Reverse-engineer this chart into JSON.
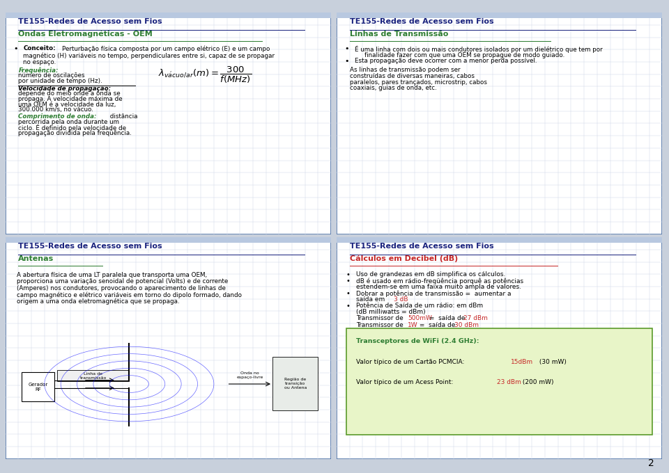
{
  "bg_color": "#c8d0dc",
  "panel_bg": "#ffffff",
  "header_color": "#1a237e",
  "subheader_green": "#2e7d32",
  "red_color": "#c62828",
  "grid_color": "#d0d8e8",
  "border_color": "#4a6fa5",
  "highlight_box_bg": "#e8f5c8",
  "highlight_box_border": "#5a9a2a",
  "panel_tl_title": "TE155-Redes de Acesso sem Fios",
  "panel_tl_subtitle": "Ondas Eletromagnéticas - OEM",
  "panel_tr_title": "TE155-Redes de Acesso sem Fios",
  "panel_tr_subtitle": "Linhas de Transmissão",
  "panel_bl_title": "TE155-Redes de Acesso sem Fios",
  "panel_bl_subtitle": "Antenas",
  "panel_br_title": "TE155-Redes de Acesso sem Fios",
  "panel_br_subtitle": "Cálculos em Decibel (dB)",
  "page_number": "2",
  "tl_concept_bold": "Conceito:",
  "tl_concept_rest": " Perturbação física composta por um campo elétrico (E) e um campo\nmagnético (H) variáveis no tempo, perpendiculares entre si, capaz de se propagar\nno espaço.",
  "tl_freq_label": "Frequência:",
  "tl_freq_text": " número de oscilações\npor unidade de tempo (Hz).",
  "tl_vel_label": "Velocidade de propagação:",
  "tl_vel_text": "depende do meio onde a onda se\npropaga. A velocidade máxima de\numa OEM é a velocidade da luz,\n300.000 km/s, no vácuo.",
  "tl_comp_label": "Comprimento de onda:",
  "tl_comp_text": " distância percorrida pela onda durante um\nciclo. É definido pela velocidade de\npropagação dividida pela freqüência.",
  "tr_b1": "É uma linha com dois ou mais condutores isolados por um dielétrico que tem por\n  finalidade fazer com que uma OEM se propague de modo guiado.",
  "tr_b2": "Esta propagação deve ocorrer com a menor perda possível.",
  "tr_body": "As linhas de transmissão podem ser\nconstruídas de diversas maneiras, cabos\nparalelos, pares trançados, microstrip, cabos\ncoaxiais, guias de onda, etc.",
  "bl_text1": "A abertura física de uma LT paralela que transporta uma OEM,",
  "bl_text2": "proporciona uma variação senoidal de potencial (Volts) e de corrente",
  "bl_text3": "(Amperes) nos condutores, provocando o aparecimento de linhas de",
  "bl_text4": "campo magnético e elétrico variáveis em torno do dipolo formado, dando",
  "bl_text5": "origem a uma onda eletromagnética que se propaga.",
  "br_b1": "Uso de grandezas em dB simplifica os cálculos.",
  "br_b2a": "dB é usado em rádio-freqüência porquê as potências",
  "br_b2b": "estendem-se em uma faixa muito ampla de valores.",
  "br_b3a": "Dobrar a potência de transmissão =  aumentar a",
  "br_b3b_black": "saída em ",
  "br_b3b_red": "3 dB",
  "br_b4a": "Potência de Saída de um rádio: em dBm",
  "br_b4b": "(dB milliwatts = dBm)",
  "br_b5_pre": "Transmissor de ",
  "br_b5_red": "500mW",
  "br_b5_mid": " =  saída de ",
  "br_b5_red2": "27 dBm",
  "br_b6_pre": "Transmissor de ",
  "br_b6_red": "1W",
  "br_b6_mid": " =  saída de ",
  "br_b6_red2": "30 dBm",
  "box_title": "Transceptores de WiFi (2.4 GHz):",
  "box_l2_pre": "Valor típico de um Cartão PCMCIA: ",
  "box_l2_red": "15dBm",
  "box_l2_end": " (30 mW)",
  "box_l3_pre": "Valor típico de um Acess Point: ",
  "box_l3_red": "23 dBm",
  "box_l3_end": " (200 mW)"
}
